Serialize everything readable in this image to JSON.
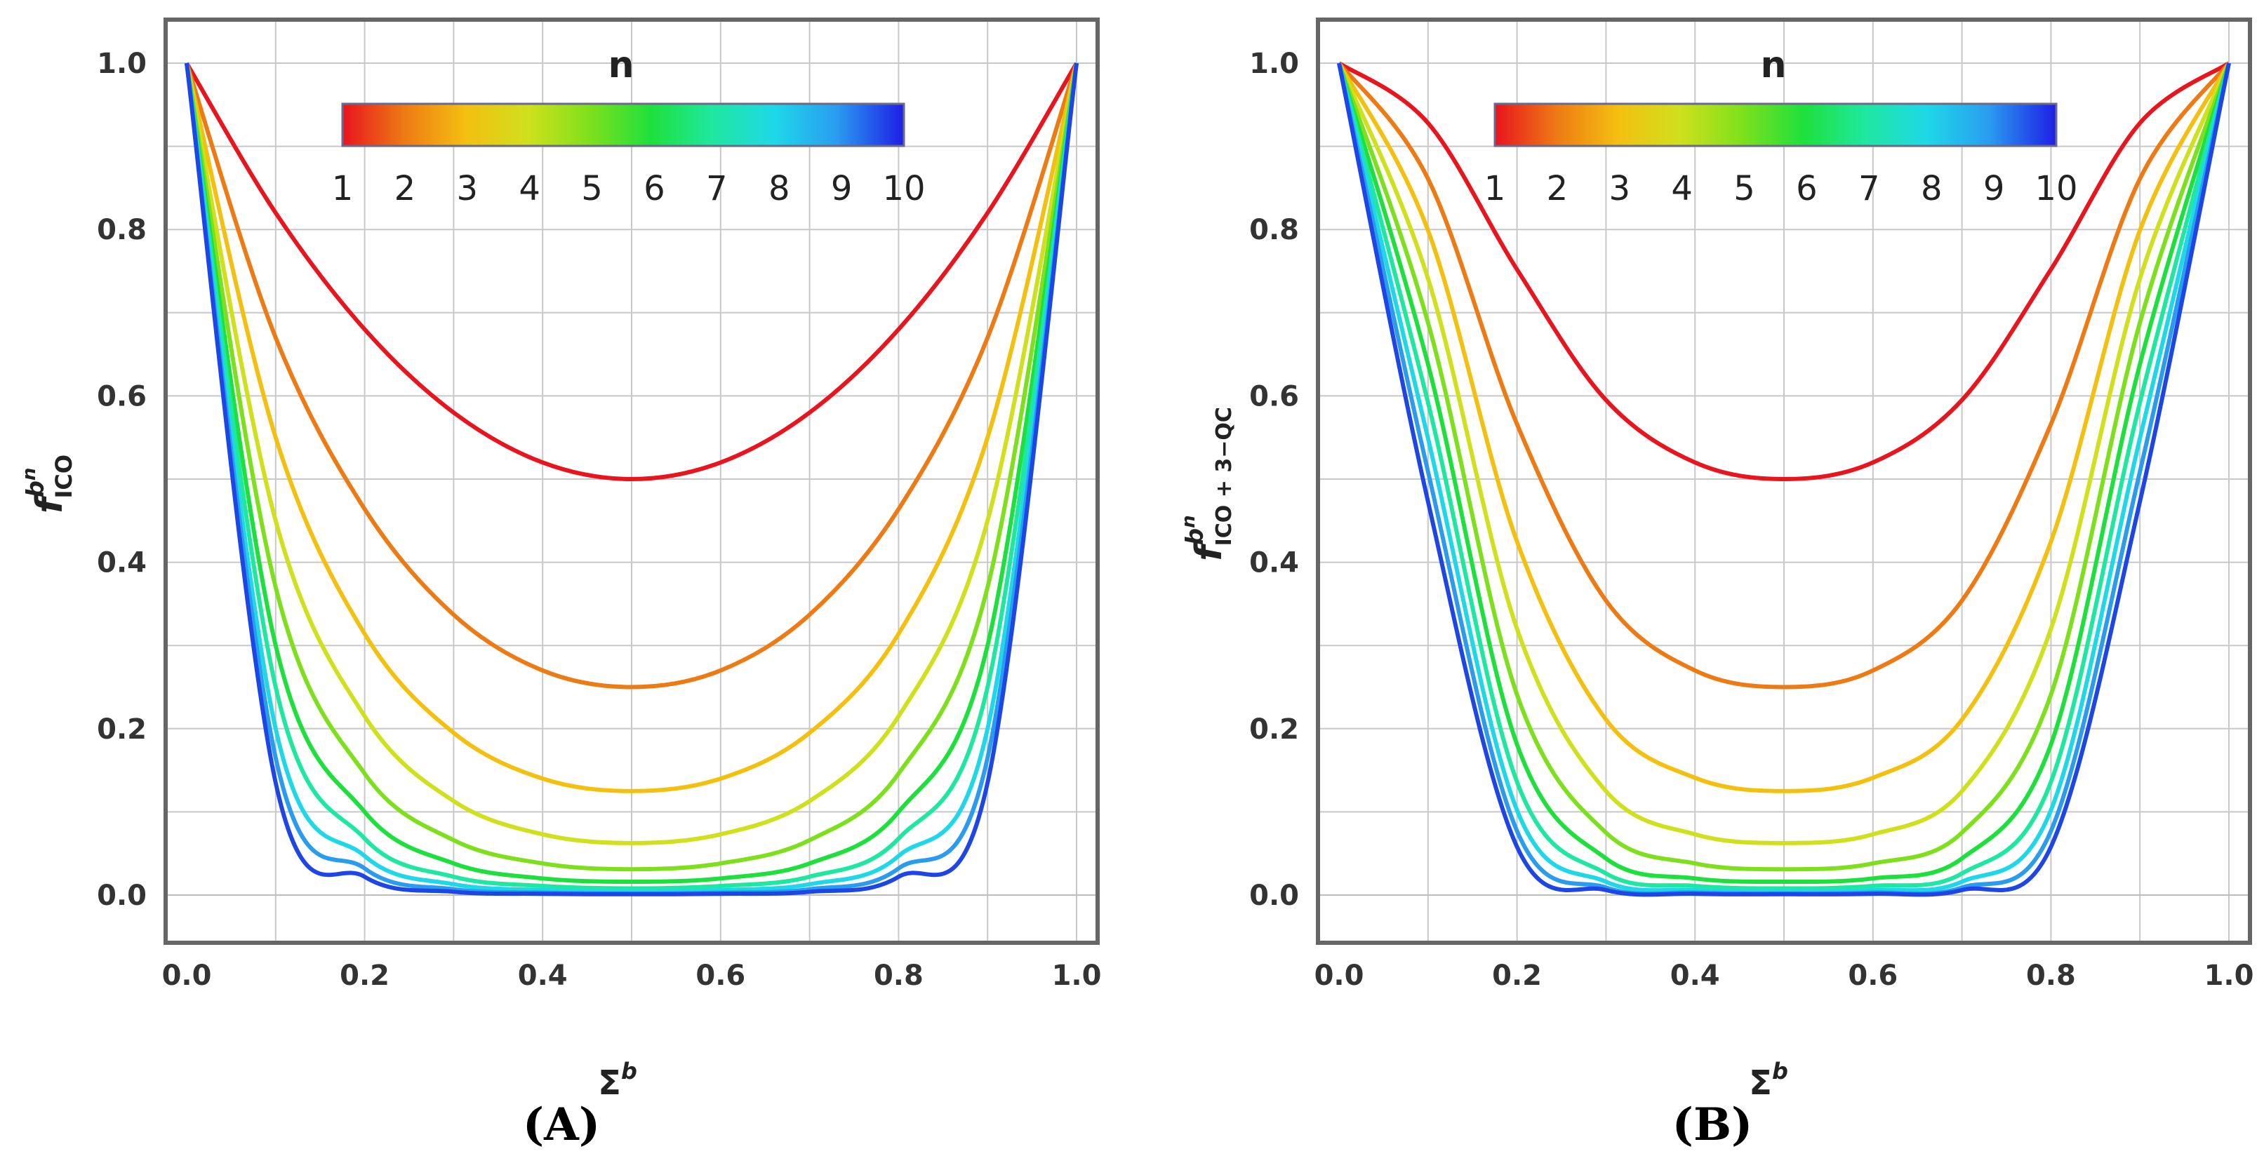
{
  "chart_data": [
    {
      "type": "line",
      "panel_label": "(A)",
      "xlabel": {
        "main": "Σ",
        "sup": "b"
      },
      "ylabel": {
        "main": "f",
        "sup": "b",
        "supsup": "n",
        "sub": "ICO"
      },
      "xlim": [
        0.0,
        1.0
      ],
      "ylim": [
        0.0,
        1.0
      ],
      "xticks": [
        "0.0",
        "0.2",
        "0.4",
        "0.6",
        "0.8",
        "1.0"
      ],
      "yticks": [
        "0.0",
        "0.2",
        "0.4",
        "0.6",
        "0.8",
        "1.0"
      ],
      "grid": true,
      "colorbar": {
        "title": "n",
        "labels": [
          "1",
          "2",
          "3",
          "4",
          "5",
          "6",
          "7",
          "8",
          "9",
          "10"
        ],
        "placement": "top-center"
      },
      "x": [
        0.0,
        0.1,
        0.2,
        0.3,
        0.4,
        0.5,
        0.6,
        0.7,
        0.8,
        0.9,
        1.0
      ],
      "series": [
        {
          "n": 1,
          "color": "#e8141e",
          "values": [
            1.0,
            0.82,
            0.68,
            0.58,
            0.52,
            0.5,
            0.52,
            0.58,
            0.68,
            0.82,
            1.0
          ]
        },
        {
          "n": 2,
          "color": "#ee7a14",
          "values": [
            1.0,
            0.67,
            0.464,
            0.337,
            0.27,
            0.25,
            0.27,
            0.337,
            0.464,
            0.67,
            1.0
          ]
        },
        {
          "n": 3,
          "color": "#f4c010",
          "values": [
            1.0,
            0.55,
            0.314,
            0.195,
            0.14,
            0.125,
            0.14,
            0.195,
            0.314,
            0.55,
            1.0
          ]
        },
        {
          "n": 4,
          "color": "#cfe01c",
          "values": [
            1.0,
            0.45,
            0.215,
            0.113,
            0.073,
            0.0625,
            0.073,
            0.113,
            0.215,
            0.45,
            1.0
          ]
        },
        {
          "n": 5,
          "color": "#7ee01c",
          "values": [
            1.0,
            0.37,
            0.146,
            0.066,
            0.038,
            0.031,
            0.038,
            0.066,
            0.146,
            0.37,
            1.0
          ]
        },
        {
          "n": 6,
          "color": "#1ee03c",
          "values": [
            1.0,
            0.3,
            0.1,
            0.038,
            0.02,
            0.016,
            0.02,
            0.038,
            0.1,
            0.3,
            1.0
          ]
        },
        {
          "n": 7,
          "color": "#1ee8a0",
          "values": [
            1.0,
            0.25,
            0.068,
            0.022,
            0.011,
            0.008,
            0.011,
            0.022,
            0.068,
            0.25,
            1.0
          ]
        },
        {
          "n": 8,
          "color": "#1ed8e8",
          "values": [
            1.0,
            0.2,
            0.047,
            0.013,
            0.006,
            0.004,
            0.006,
            0.013,
            0.047,
            0.2,
            1.0
          ]
        },
        {
          "n": 9,
          "color": "#2a9cf0",
          "values": [
            1.0,
            0.165,
            0.032,
            0.007,
            0.003,
            0.002,
            0.003,
            0.007,
            0.032,
            0.165,
            1.0
          ]
        },
        {
          "n": 10,
          "color": "#1e46e6",
          "values": [
            1.0,
            0.135,
            0.022,
            0.004,
            0.0015,
            0.001,
            0.0015,
            0.004,
            0.022,
            0.135,
            1.0
          ]
        }
      ]
    },
    {
      "type": "line",
      "panel_label": "(B)",
      "xlabel": {
        "main": "Σ",
        "sup": "b"
      },
      "ylabel": {
        "main": "f",
        "sup": "b",
        "supsup": "n",
        "sub": "ICO + 3−QC"
      },
      "xlim": [
        0.0,
        1.0
      ],
      "ylim": [
        0.0,
        1.0
      ],
      "xticks": [
        "0.0",
        "0.2",
        "0.4",
        "0.6",
        "0.8",
        "1.0"
      ],
      "yticks": [
        "0.0",
        "0.2",
        "0.4",
        "0.6",
        "0.8",
        "1.0"
      ],
      "grid": true,
      "colorbar": {
        "title": "n",
        "labels": [
          "1",
          "2",
          "3",
          "4",
          "5",
          "6",
          "7",
          "8",
          "9",
          "10"
        ],
        "placement": "top-center"
      },
      "x": [
        0.0,
        0.1,
        0.2,
        0.3,
        0.4,
        0.5,
        0.6,
        0.7,
        0.8,
        0.9,
        1.0
      ],
      "series": [
        {
          "n": 1,
          "color": "#e8141e",
          "values": [
            1.0,
            0.928,
            0.752,
            0.595,
            0.52,
            0.5,
            0.52,
            0.595,
            0.752,
            0.928,
            1.0
          ]
        },
        {
          "n": 2,
          "color": "#ee7a14",
          "values": [
            1.0,
            0.861,
            0.566,
            0.354,
            0.27,
            0.25,
            0.27,
            0.354,
            0.566,
            0.861,
            1.0
          ]
        },
        {
          "n": 3,
          "color": "#f4c010",
          "values": [
            1.0,
            0.799,
            0.425,
            0.211,
            0.141,
            0.125,
            0.141,
            0.211,
            0.425,
            0.799,
            1.0
          ]
        },
        {
          "n": 4,
          "color": "#cfe01c",
          "values": [
            1.0,
            0.741,
            0.32,
            0.125,
            0.073,
            0.0625,
            0.073,
            0.125,
            0.32,
            0.741,
            1.0
          ]
        },
        {
          "n": 5,
          "color": "#7ee01c",
          "values": [
            1.0,
            0.688,
            0.241,
            0.075,
            0.038,
            0.031,
            0.038,
            0.075,
            0.241,
            0.688,
            1.0
          ]
        },
        {
          "n": 6,
          "color": "#1ee03c",
          "values": [
            1.0,
            0.638,
            0.181,
            0.044,
            0.02,
            0.016,
            0.02,
            0.044,
            0.181,
            0.638,
            1.0
          ]
        },
        {
          "n": 7,
          "color": "#1ee8a0",
          "values": [
            1.0,
            0.592,
            0.136,
            0.026,
            0.011,
            0.008,
            0.011,
            0.026,
            0.136,
            0.592,
            1.0
          ]
        },
        {
          "n": 8,
          "color": "#1ed8e8",
          "values": [
            1.0,
            0.549,
            0.102,
            0.016,
            0.006,
            0.004,
            0.006,
            0.016,
            0.102,
            0.549,
            1.0
          ]
        },
        {
          "n": 9,
          "color": "#2a9cf0",
          "values": [
            1.0,
            0.509,
            0.077,
            0.009,
            0.003,
            0.002,
            0.003,
            0.009,
            0.077,
            0.509,
            1.0
          ]
        },
        {
          "n": 10,
          "color": "#1e46e6",
          "values": [
            1.0,
            0.473,
            0.058,
            0.006,
            0.0015,
            0.001,
            0.0015,
            0.006,
            0.058,
            0.473,
            1.0
          ]
        }
      ]
    }
  ]
}
